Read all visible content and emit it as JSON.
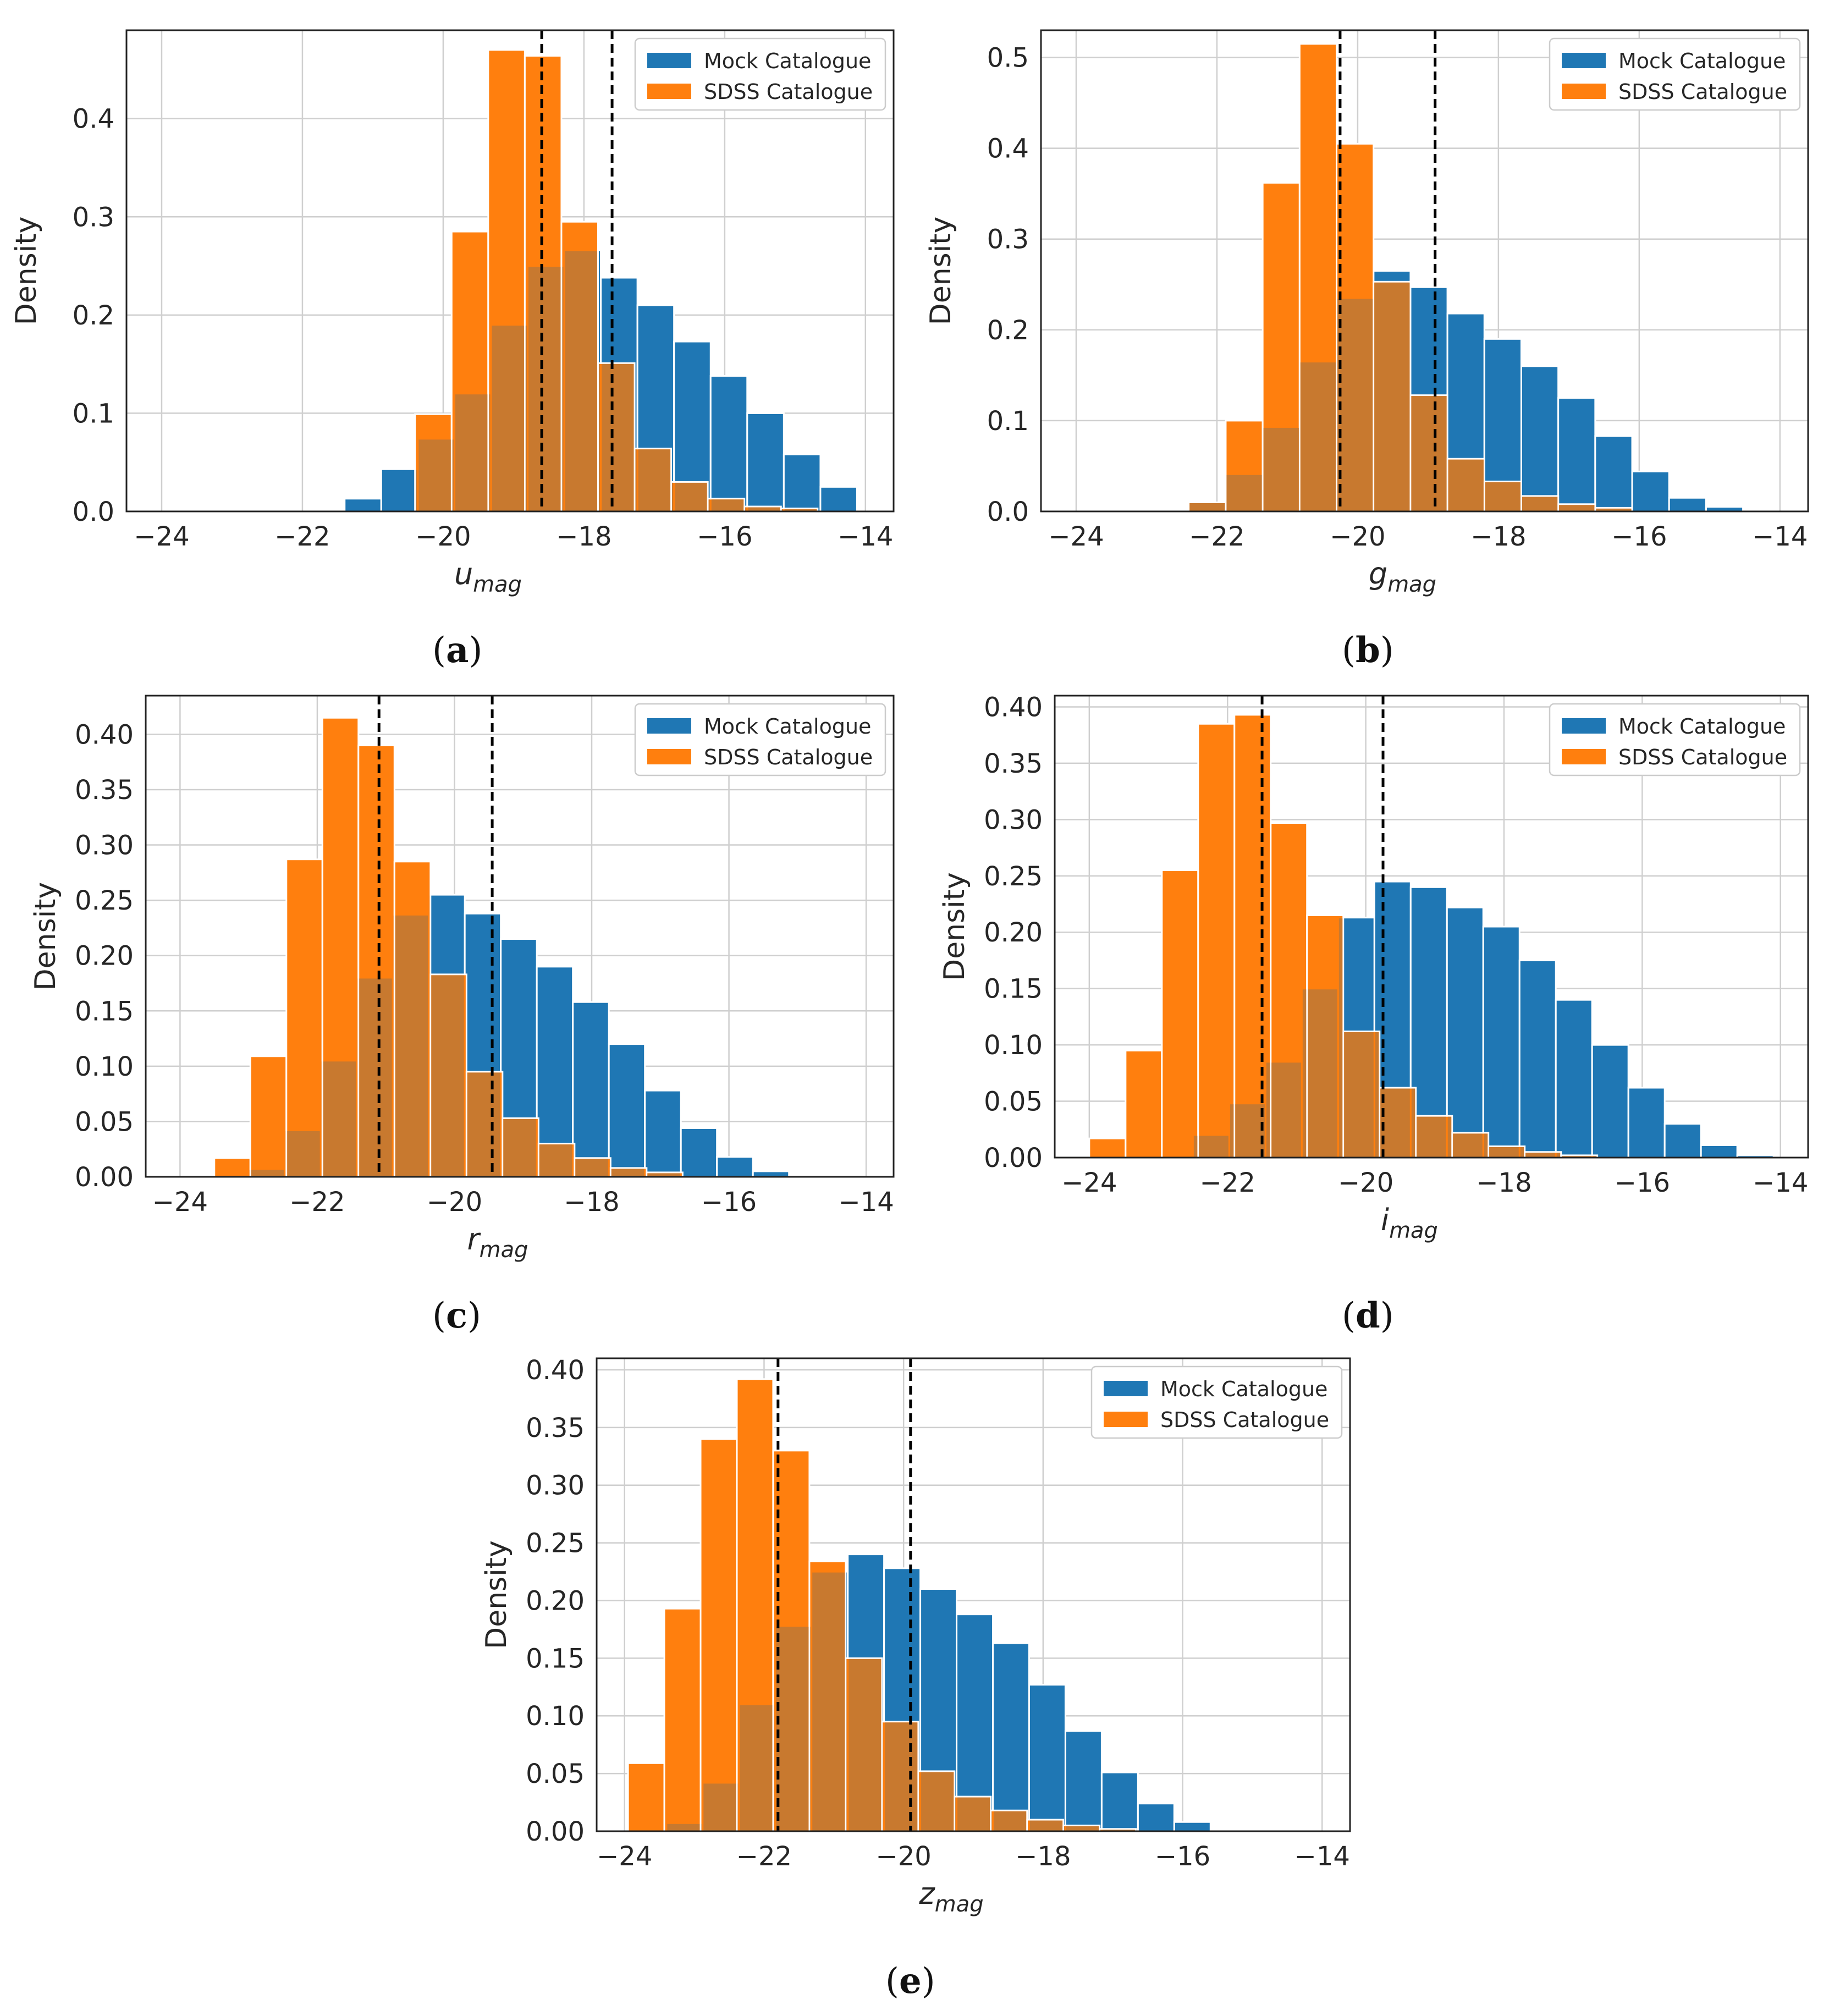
{
  "colors": {
    "mock": "#1f77b4",
    "sdss": "#ff7f0e",
    "overlap": "#c8792f"
  },
  "chart_data": [
    {
      "id": "a",
      "type": "bar",
      "caption_label": "a",
      "xlabel_main": "u",
      "xlabel_sub": "mag",
      "ylabel": "Density",
      "xlim": [
        -24.5,
        -13.6
      ],
      "ylim": [
        0,
        0.49
      ],
      "xticks": [
        -24,
        -22,
        -20,
        -18,
        -16,
        -14
      ],
      "xtick_labels": [
        "−24",
        "−22",
        "−20",
        "−18",
        "−16",
        "−14"
      ],
      "yticks": [
        0.0,
        0.1,
        0.2,
        0.3,
        0.4
      ],
      "ytick_labels": [
        "0.0",
        "0.1",
        "0.2",
        "0.3",
        "0.4"
      ],
      "legend": [
        "Mock Catalogue",
        "SDSS Catalogue"
      ],
      "vlines": [
        -18.6,
        -17.6
      ],
      "mock_bins": {
        "start": -21.4,
        "width": 0.52,
        "values": [
          0.013,
          0.043,
          0.074,
          0.12,
          0.19,
          0.25,
          0.266,
          0.238,
          0.21,
          0.173,
          0.138,
          0.1,
          0.058,
          0.025
        ]
      },
      "sdss_bins": {
        "start": -20.4,
        "width": 0.52,
        "values": [
          0.099,
          0.285,
          0.47,
          0.464,
          0.295,
          0.151,
          0.064,
          0.03,
          0.013,
          0.005,
          0.003
        ]
      }
    },
    {
      "id": "b",
      "type": "bar",
      "caption_label": "b",
      "xlabel_main": "g",
      "xlabel_sub": "mag",
      "ylabel": "Density",
      "xlim": [
        -24.5,
        -13.6
      ],
      "ylim": [
        0,
        0.53
      ],
      "xticks": [
        -24,
        -22,
        -20,
        -18,
        -16,
        -14
      ],
      "xtick_labels": [
        "−24",
        "−22",
        "−20",
        "−18",
        "−16",
        "−14"
      ],
      "yticks": [
        0.0,
        0.1,
        0.2,
        0.3,
        0.4,
        0.5
      ],
      "ytick_labels": [
        "0.0",
        "0.1",
        "0.2",
        "0.3",
        "0.4",
        "0.5"
      ],
      "legend": [
        "Mock Catalogue",
        "SDSS Catalogue"
      ],
      "vlines": [
        -20.25,
        -18.9
      ],
      "mock_bins": {
        "start": -22.4,
        "width": 0.525,
        "values": [
          0.01,
          0.041,
          0.093,
          0.165,
          0.235,
          0.265,
          0.247,
          0.218,
          0.19,
          0.16,
          0.125,
          0.083,
          0.044,
          0.015,
          0.005
        ]
      },
      "sdss_bins": {
        "start": -22.4,
        "width": 0.525,
        "values": [
          0.01,
          0.1,
          0.362,
          0.515,
          0.405,
          0.253,
          0.128,
          0.058,
          0.033,
          0.017,
          0.008,
          0.004
        ]
      }
    },
    {
      "id": "c",
      "type": "bar",
      "caption_label": "c",
      "xlabel_main": "r",
      "xlabel_sub": "mag",
      "ylabel": "Density",
      "xlim": [
        -24.5,
        -13.6
      ],
      "ylim": [
        0,
        0.435
      ],
      "xticks": [
        -24,
        -22,
        -20,
        -18,
        -16,
        -14
      ],
      "xtick_labels": [
        "−24",
        "−22",
        "−20",
        "−18",
        "−16",
        "−14"
      ],
      "yticks": [
        0.0,
        0.05,
        0.1,
        0.15,
        0.2,
        0.25,
        0.3,
        0.35,
        0.4
      ],
      "ytick_labels": [
        "0.00",
        "0.05",
        "0.10",
        "0.15",
        "0.20",
        "0.25",
        "0.30",
        "0.35",
        "0.40"
      ],
      "legend": [
        "Mock Catalogue",
        "SDSS Catalogue"
      ],
      "vlines": [
        -21.1,
        -19.45
      ],
      "mock_bins": {
        "start": -23.0,
        "width": 0.525,
        "values": [
          0.007,
          0.042,
          0.105,
          0.18,
          0.237,
          0.255,
          0.238,
          0.215,
          0.19,
          0.158,
          0.12,
          0.078,
          0.044,
          0.018,
          0.005
        ]
      },
      "sdss_bins": {
        "start": -23.5,
        "width": 0.525,
        "values": [
          0.017,
          0.109,
          0.287,
          0.415,
          0.39,
          0.285,
          0.183,
          0.095,
          0.053,
          0.03,
          0.017,
          0.008,
          0.004
        ]
      }
    },
    {
      "id": "d",
      "type": "bar",
      "caption_label": "d",
      "xlabel_main": "i",
      "xlabel_sub": "mag",
      "ylabel": "Density",
      "xlim": [
        -24.5,
        -13.6
      ],
      "ylim": [
        0,
        0.41
      ],
      "xticks": [
        -24,
        -22,
        -20,
        -18,
        -16,
        -14
      ],
      "xtick_labels": [
        "−24",
        "−22",
        "−20",
        "−18",
        "−16",
        "−14"
      ],
      "yticks": [
        0.0,
        0.05,
        0.1,
        0.15,
        0.2,
        0.25,
        0.3,
        0.35,
        0.4
      ],
      "ytick_labels": [
        "0.00",
        "0.05",
        "0.10",
        "0.15",
        "0.20",
        "0.25",
        "0.30",
        "0.35",
        "0.40"
      ],
      "legend": [
        "Mock Catalogue",
        "SDSS Catalogue"
      ],
      "vlines": [
        -21.5,
        -19.75
      ],
      "mock_bins": {
        "start": -22.5,
        "width": 0.525,
        "values": [
          0.02,
          0.048,
          0.085,
          0.15,
          0.213,
          0.245,
          0.24,
          0.222,
          0.205,
          0.175,
          0.14,
          0.1,
          0.062,
          0.03,
          0.011,
          0.002
        ]
      },
      "sdss_bins": {
        "start": -24.0,
        "width": 0.525,
        "values": [
          0.017,
          0.095,
          0.255,
          0.385,
          0.393,
          0.297,
          0.215,
          0.112,
          0.062,
          0.037,
          0.022,
          0.01,
          0.005,
          0.002
        ]
      }
    },
    {
      "id": "e",
      "type": "bar",
      "caption_label": "e",
      "xlabel_main": "z",
      "xlabel_sub": "mag",
      "ylabel": "Density",
      "xlim": [
        -24.4,
        -13.6
      ],
      "ylim": [
        0,
        0.41
      ],
      "xticks": [
        -24,
        -22,
        -20,
        -18,
        -16,
        -14
      ],
      "xtick_labels": [
        "−24",
        "−22",
        "−20",
        "−18",
        "−16",
        "−14"
      ],
      "yticks": [
        0.0,
        0.05,
        0.1,
        0.15,
        0.2,
        0.25,
        0.3,
        0.35,
        0.4
      ],
      "ytick_labels": [
        "0.00",
        "0.05",
        "0.10",
        "0.15",
        "0.20",
        "0.25",
        "0.30",
        "0.35",
        "0.40"
      ],
      "legend": [
        "Mock Catalogue",
        "SDSS Catalogue"
      ],
      "vlines": [
        -21.8,
        -19.9
      ],
      "mock_bins": {
        "start": -23.4,
        "width": 0.52,
        "values": [
          0.007,
          0.042,
          0.11,
          0.178,
          0.225,
          0.24,
          0.228,
          0.21,
          0.188,
          0.163,
          0.127,
          0.087,
          0.051,
          0.024,
          0.008
        ]
      },
      "sdss_bins": {
        "start": -23.95,
        "width": 0.52,
        "values": [
          0.059,
          0.193,
          0.34,
          0.392,
          0.33,
          0.234,
          0.15,
          0.095,
          0.052,
          0.03,
          0.018,
          0.01,
          0.005,
          0.002
        ]
      }
    }
  ]
}
